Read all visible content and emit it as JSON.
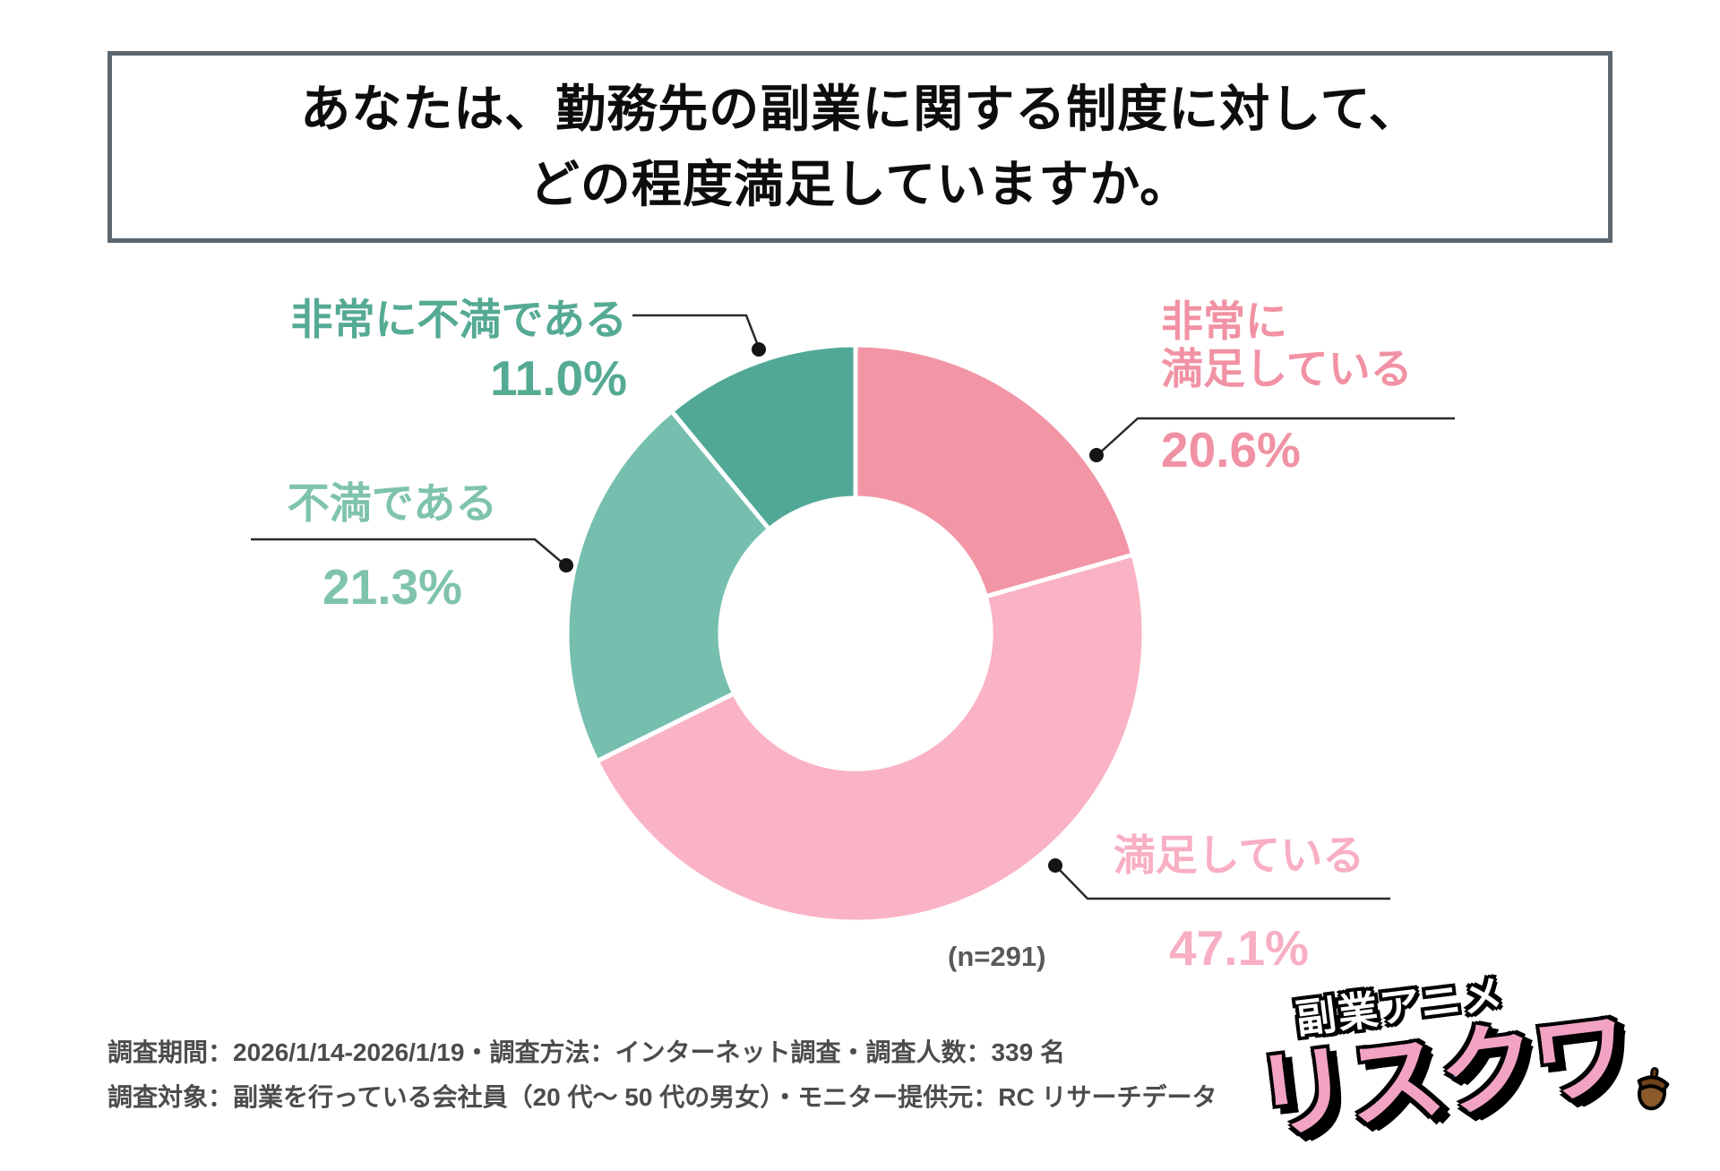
{
  "title": {
    "line1": "あなたは、勤務先の副業に関する制度に対して、",
    "line2": "どの程度満足していますか。"
  },
  "chart_data": {
    "type": "pie",
    "donut": true,
    "title": "あなたは、勤務先の副業に関する制度に対して、どの程度満足していますか。",
    "categories": [
      "非常に満足している",
      "満足している",
      "不満である",
      "非常に不満である"
    ],
    "values": [
      20.6,
      47.1,
      21.3,
      11.0
    ],
    "unit": "%",
    "colors": [
      "#F295A5",
      "#F9B3C4",
      "#76BFAE",
      "#51A896"
    ],
    "start_angle": "top",
    "direction": "clockwise",
    "inner_radius_ratio": 0.47,
    "legend_position": "callout-labels",
    "sample_size": "(n=291)"
  },
  "callouts": {
    "very_satisfied": {
      "line1": "非常に",
      "line2": "満足している",
      "pct": "20.6%",
      "color": "#F192A4"
    },
    "satisfied": {
      "label": "満足している",
      "pct": "47.1%",
      "color": "#F8AFC3"
    },
    "dissatisfied": {
      "label": "不満である",
      "pct": "21.3%",
      "color": "#7FC3AC"
    },
    "very_dissatisfied": {
      "label": "非常に不満である",
      "pct": "11.0%",
      "color": "#55AA93"
    }
  },
  "sample_label": "(n=291)",
  "footer": {
    "line1": "調査期間：2026/1/14-2026/1/19・調査方法：インターネット調査・調査人数：339 名",
    "line2": "調査対象：副業を行っている会社員（20 代〜 50 代の男女）・モニター提供元：RC リサーチデータ"
  },
  "logo": {
    "tagline": "副業アニメ",
    "name": "リスクワ",
    "acorn_icon_color": "#8A5A2B"
  }
}
